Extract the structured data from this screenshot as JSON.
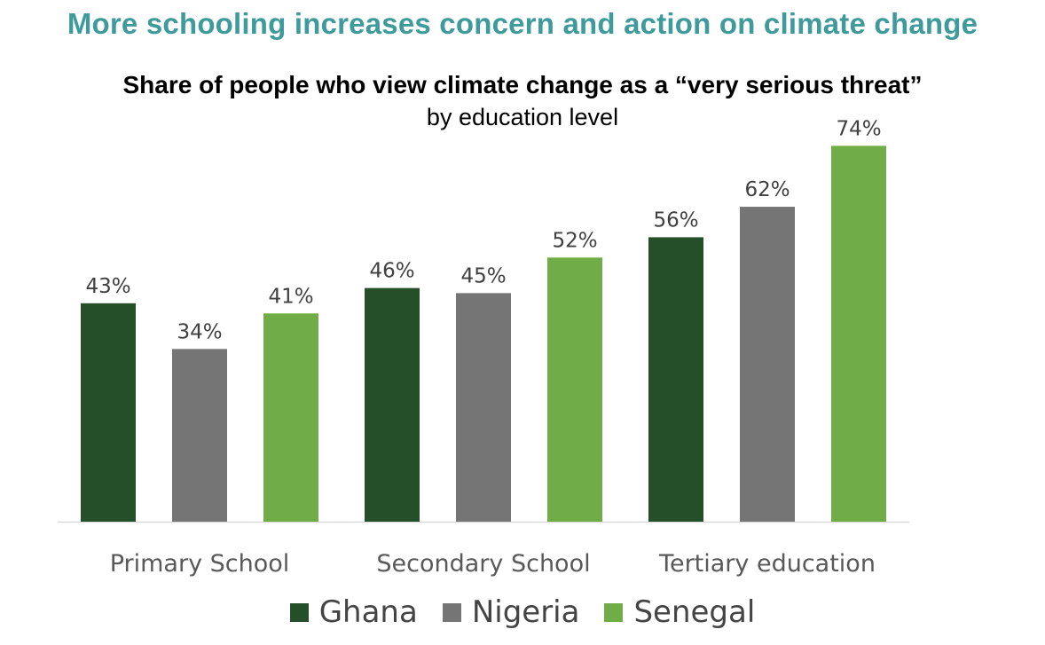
{
  "headline": "More schooling increases concern and action on climate change",
  "chart_data": {
    "type": "bar",
    "title": "Share of people who view climate change as a “very serious threat”",
    "subtitle": "by education level",
    "categories": [
      "Primary School",
      "Secondary School",
      "Tertiary education"
    ],
    "series": [
      {
        "name": "Ghana",
        "color": "#254f28",
        "values": [
          43,
          46,
          56
        ]
      },
      {
        "name": "Nigeria",
        "color": "#757575",
        "values": [
          34,
          45,
          62
        ]
      },
      {
        "name": "Senegal",
        "color": "#70ad47",
        "values": [
          41,
          52,
          74
        ]
      }
    ],
    "value_suffix": "%",
    "ylim": [
      0,
      80
    ],
    "grid": false,
    "legend_position": "bottom"
  }
}
